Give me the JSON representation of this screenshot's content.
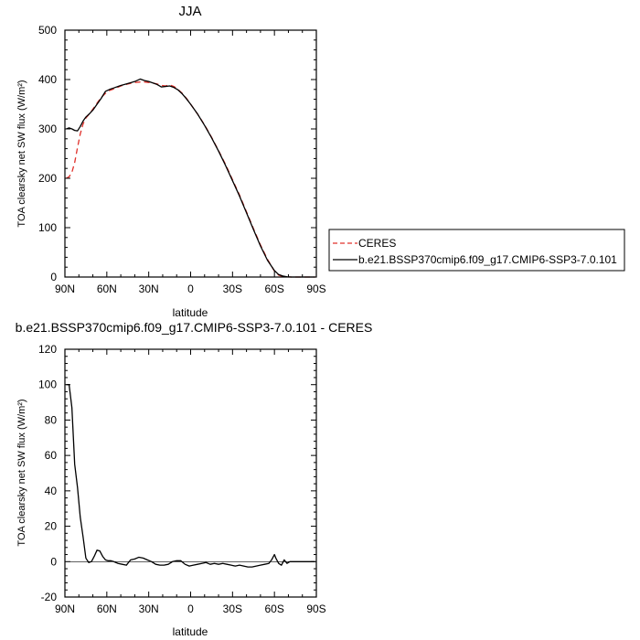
{
  "chart_data": [
    {
      "type": "line",
      "title": "JJA",
      "xlabel": "latitude",
      "ylabel": "TOA clearsky net SW flux (W/m²)",
      "xlim": [
        90,
        -90
      ],
      "ylim": [
        0,
        500
      ],
      "xticks": [
        90,
        60,
        30,
        0,
        -30,
        -60,
        -90
      ],
      "xtick_labels": [
        "90N",
        "60N",
        "30N",
        "0",
        "30S",
        "60S",
        "90S"
      ],
      "yticks": [
        0,
        100,
        200,
        300,
        400,
        500
      ],
      "ytick_labels": [
        "0",
        "100",
        "200",
        "300",
        "400",
        "500"
      ],
      "legend_position": "right",
      "series": [
        {
          "name": "CERES",
          "color": "#e0302a",
          "dash": "dashed",
          "x": [
            89,
            87,
            85,
            83,
            81,
            79,
            77,
            75,
            72,
            70,
            67,
            64,
            61,
            58,
            55,
            50,
            45,
            40,
            36,
            33,
            30,
            27,
            24,
            21,
            18,
            15,
            12,
            9,
            6,
            3,
            0,
            -5,
            -10,
            -15,
            -20,
            -25,
            -30,
            -35,
            -40,
            -45,
            -50,
            -55,
            -60,
            -63,
            -66,
            -69,
            -72,
            -75,
            -80,
            -85,
            -89
          ],
          "y": [
            200,
            203,
            212,
            232,
            262,
            290,
            310,
            322,
            332,
            340,
            352,
            364,
            372,
            378,
            381,
            387,
            391,
            394,
            395,
            395,
            394,
            393,
            391,
            388,
            387,
            389,
            386,
            380,
            372,
            362,
            350,
            330,
            308,
            283,
            256,
            228,
            197,
            166,
            132,
            98,
            65,
            36,
            12,
            4,
            1,
            0.3,
            0,
            0,
            0,
            0,
            0
          ]
        },
        {
          "name": "b.e21.BSSP370cmip6.f09_g17.CMIP6-SSP3-7.0.101",
          "color": "#000000",
          "dash": "solid",
          "x": [
            89,
            87,
            85,
            83,
            81,
            79,
            77,
            75,
            72,
            70,
            67,
            64,
            61,
            58,
            55,
            50,
            45,
            40,
            36,
            33,
            30,
            27,
            24,
            21,
            18,
            15,
            12,
            9,
            6,
            3,
            0,
            -5,
            -10,
            -15,
            -20,
            -25,
            -30,
            -35,
            -40,
            -45,
            -50,
            -55,
            -60,
            -63,
            -66,
            -69,
            -72,
            -75,
            -80,
            -85,
            -89
          ],
          "y": [
            300,
            302,
            300,
            297,
            296,
            305,
            316,
            324,
            332,
            338,
            350,
            362,
            376,
            380,
            383,
            388,
            392,
            396,
            401,
            398,
            396,
            393,
            390,
            385,
            386,
            387,
            384,
            379,
            371,
            361,
            350,
            330,
            307,
            282,
            255,
            226,
            195,
            164,
            130,
            96,
            63,
            34,
            13,
            5,
            2,
            0.5,
            0,
            0,
            0,
            0,
            0
          ]
        }
      ]
    },
    {
      "type": "line",
      "title": "b.e21.BSSP370cmip6.f09_g17.CMIP6-SSP3-7.0.101 - CERES",
      "xlabel": "latitude",
      "ylabel": "TOA clearsky net SW flux (W/m²)",
      "xlim": [
        90,
        -90
      ],
      "ylim": [
        -20,
        120
      ],
      "xticks": [
        90,
        60,
        30,
        0,
        -30,
        -60,
        -90
      ],
      "xtick_labels": [
        "90N",
        "60N",
        "30N",
        "0",
        "30S",
        "60S",
        "90S"
      ],
      "yticks": [
        -20,
        0,
        20,
        40,
        60,
        80,
        100,
        120
      ],
      "ytick_labels": [
        "-20",
        "0",
        "20",
        "40",
        "60",
        "80",
        "100",
        "120"
      ],
      "series": [
        {
          "color": "#000000",
          "dash": "solid",
          "x": [
            89,
            87,
            85,
            83,
            81,
            79,
            77,
            75,
            73,
            71,
            69,
            67,
            65,
            63,
            61,
            59,
            57,
            55,
            52,
            49,
            46,
            43,
            40,
            37,
            34,
            31,
            28,
            25,
            22,
            19,
            16,
            13,
            10,
            7,
            4,
            1,
            -2,
            -5,
            -8,
            -11,
            -14,
            -17,
            -20,
            -23,
            -26,
            -29,
            -32,
            -35,
            -38,
            -41,
            -44,
            -47,
            -50,
            -53,
            -56,
            -58,
            -60,
            -61,
            -63,
            -65,
            -67,
            -69,
            -71,
            -74,
            -78,
            -82,
            -86,
            -89
          ],
          "y": [
            100,
            100,
            87,
            55,
            42,
            25,
            14,
            2,
            -0.5,
            0,
            3,
            6.5,
            6,
            3,
            1,
            0.5,
            0.5,
            0,
            -1,
            -1.5,
            -2,
            1,
            1.5,
            2.5,
            2,
            1,
            0,
            -1.5,
            -2,
            -2,
            -1.5,
            0,
            0.5,
            0.5,
            -1.5,
            -2.5,
            -2,
            -1.5,
            -1,
            -0.5,
            -1.5,
            -1,
            -1.5,
            -1,
            -1.5,
            -2,
            -2.5,
            -2,
            -2.5,
            -3,
            -3,
            -2.5,
            -2,
            -1.5,
            -1,
            1,
            4,
            2,
            -1,
            -2,
            1,
            -1,
            0,
            0,
            0,
            0,
            0,
            0
          ]
        }
      ]
    }
  ]
}
